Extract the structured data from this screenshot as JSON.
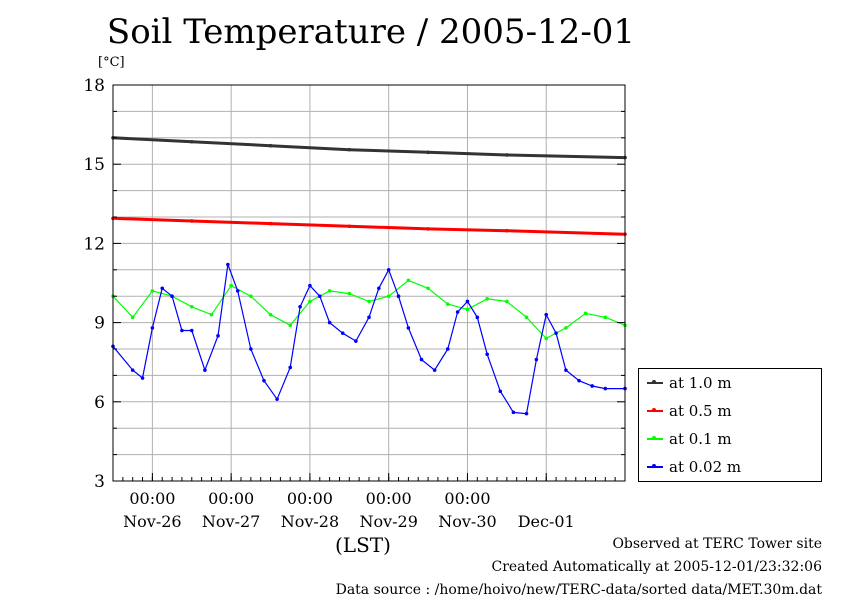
{
  "chart_data": {
    "type": "line",
    "title": "Soil Temperature / 2005-12-01",
    "yunit": "[°C]",
    "xlabel": "(LST)",
    "ylim": [
      3,
      18
    ],
    "yticks": [
      3,
      6,
      9,
      12,
      15,
      18
    ],
    "xlim": [
      "2005-11-25T12:00",
      "2005-12-01T24:00"
    ],
    "xticks": [
      {
        "time": "2005-11-26T00:00",
        "label_top": "00:00",
        "label_bottom": "Nov-26"
      },
      {
        "time": "2005-11-27T00:00",
        "label_top": "00:00",
        "label_bottom": "Nov-27"
      },
      {
        "time": "2005-11-28T00:00",
        "label_top": "00:00",
        "label_bottom": "Nov-28"
      },
      {
        "time": "2005-11-29T00:00",
        "label_top": "00:00",
        "label_bottom": "Nov-29"
      },
      {
        "time": "2005-11-30T00:00",
        "label_top": "00:00",
        "label_bottom": "Nov-30"
      },
      {
        "time": "2005-12-01T00:00",
        "label_top": "",
        "label_bottom": "Dec-01"
      }
    ],
    "grid": true,
    "legend_position": "right-bottom",
    "series": [
      {
        "name": "at 1.0 m",
        "color": "#333333",
        "x": [
          "2005-11-25T12:00",
          "2005-11-26T12:00",
          "2005-11-27T12:00",
          "2005-11-28T12:00",
          "2005-11-29T12:00",
          "2005-11-30T12:00",
          "2005-12-01T24:00"
        ],
        "y": [
          16.0,
          15.85,
          15.7,
          15.55,
          15.45,
          15.35,
          15.25
        ]
      },
      {
        "name": "at 0.5 m",
        "color": "#ff0000",
        "x": [
          "2005-11-25T12:00",
          "2005-11-26T12:00",
          "2005-11-27T12:00",
          "2005-11-28T12:00",
          "2005-11-29T12:00",
          "2005-11-30T12:00",
          "2005-12-01T24:00"
        ],
        "y": [
          12.95,
          12.85,
          12.75,
          12.65,
          12.55,
          12.48,
          12.35
        ]
      },
      {
        "name": "at 0.1 m",
        "color": "#00ff00",
        "x": [
          "2005-11-25T12:00",
          "2005-11-25T18:00",
          "2005-11-26T00:00",
          "2005-11-26T06:00",
          "2005-11-26T12:00",
          "2005-11-26T18:00",
          "2005-11-27T00:00",
          "2005-11-27T06:00",
          "2005-11-27T12:00",
          "2005-11-27T18:00",
          "2005-11-28T00:00",
          "2005-11-28T06:00",
          "2005-11-28T12:00",
          "2005-11-28T18:00",
          "2005-11-29T00:00",
          "2005-11-29T06:00",
          "2005-11-29T12:00",
          "2005-11-29T18:00",
          "2005-11-30T00:00",
          "2005-11-30T06:00",
          "2005-11-30T12:00",
          "2005-11-30T18:00",
          "2005-12-01T00:00",
          "2005-12-01T06:00",
          "2005-12-01T12:00",
          "2005-12-01T18:00",
          "2005-12-01T24:00"
        ],
        "y": [
          10.0,
          9.2,
          10.2,
          10.0,
          9.6,
          9.3,
          10.4,
          10.0,
          9.3,
          8.9,
          9.8,
          10.2,
          10.1,
          9.8,
          10.0,
          10.6,
          10.3,
          9.7,
          9.5,
          9.9,
          9.8,
          9.2,
          8.4,
          8.8,
          9.35,
          9.2,
          8.9
        ]
      },
      {
        "name": "at 0.02 m",
        "color": "#0000ff",
        "x": [
          "2005-11-25T12:00",
          "2005-11-25T18:00",
          "2005-11-25T21:00",
          "2005-11-26T00:00",
          "2005-11-26T03:00",
          "2005-11-26T06:00",
          "2005-11-26T09:00",
          "2005-11-26T12:00",
          "2005-11-26T16:00",
          "2005-11-26T20:00",
          "2005-11-26T23:00",
          "2005-11-27T02:00",
          "2005-11-27T06:00",
          "2005-11-27T10:00",
          "2005-11-27T14:00",
          "2005-11-27T18:00",
          "2005-11-27T21:00",
          "2005-11-28T00:00",
          "2005-11-28T03:00",
          "2005-11-28T06:00",
          "2005-11-28T10:00",
          "2005-11-28T14:00",
          "2005-11-28T18:00",
          "2005-11-28T21:00",
          "2005-11-29T00:00",
          "2005-11-29T03:00",
          "2005-11-29T06:00",
          "2005-11-29T10:00",
          "2005-11-29T14:00",
          "2005-11-29T18:00",
          "2005-11-29T21:00",
          "2005-11-30T00:00",
          "2005-11-30T03:00",
          "2005-11-30T06:00",
          "2005-11-30T10:00",
          "2005-11-30T14:00",
          "2005-11-30T18:00",
          "2005-11-30T21:00",
          "2005-12-01T00:00",
          "2005-12-01T03:00",
          "2005-12-01T06:00",
          "2005-12-01T10:00",
          "2005-12-01T14:00",
          "2005-12-01T18:00",
          "2005-12-01T24:00"
        ],
        "y": [
          8.1,
          7.2,
          6.9,
          8.8,
          10.3,
          10.0,
          8.7,
          8.7,
          7.2,
          8.5,
          11.2,
          10.2,
          8.0,
          6.8,
          6.1,
          7.3,
          9.6,
          10.4,
          10.0,
          9.0,
          8.6,
          8.3,
          9.2,
          10.3,
          11.0,
          10.0,
          8.8,
          7.6,
          7.2,
          8.0,
          9.4,
          9.8,
          9.2,
          7.8,
          6.4,
          5.6,
          5.55,
          7.6,
          9.3,
          8.6,
          7.2,
          6.8,
          6.6,
          6.5,
          6.5
        ]
      }
    ]
  },
  "footer": {
    "line1": "Observed at TERC Tower site",
    "line2": "Created Automatically at 2005-12-01/23:32:06",
    "line3": "Data source : /home/hoivo/new/TERC-data/sorted  data/MET.30m.dat"
  }
}
